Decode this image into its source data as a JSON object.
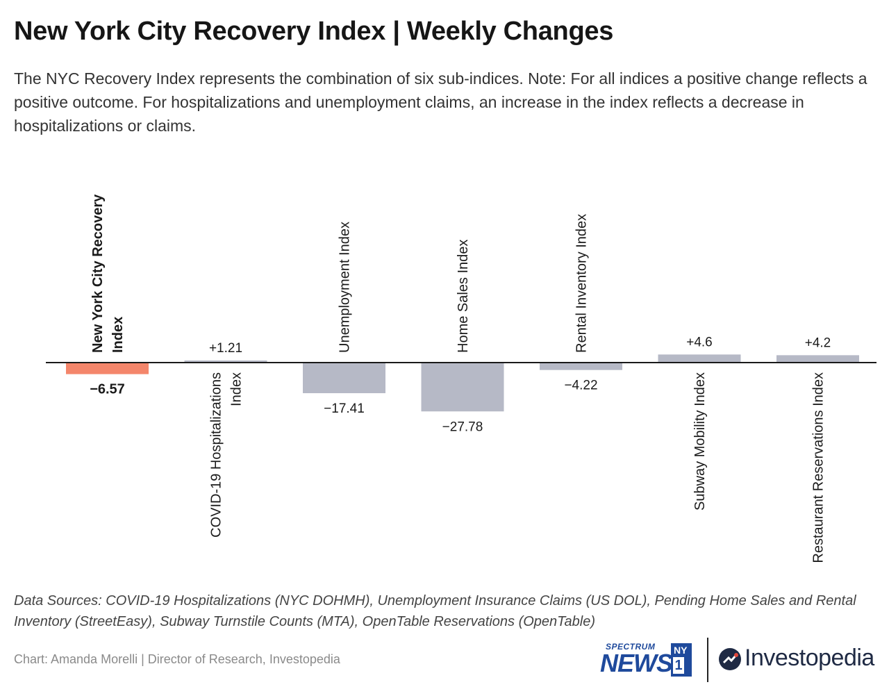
{
  "title": "New York City Recovery Index | Weekly Changes",
  "subtitle": "The NYC Recovery Index represents the combination of six sub-indices. Note: For all indices a positive change reflects a positive outcome. For hospitalizations and unemployment claims, an increase in the index reflects a decrease in hospitalizations or claims.",
  "sources": "Data Sources: COVID-19 Hospitalizations (NYC DOHMH), Unemployment Insurance Claims (US DOL), Pending Home Sales and Rental Inventory (StreetEasy), Subway Turnstile Counts (MTA), OpenTable Reservations (OpenTable)",
  "credit": "Chart: Amanda Morelli | Director of Research, Investopedia",
  "logos": {
    "spectrum_small": "SPECTRUM",
    "spectrum_news": "NEWS",
    "ny": "NY",
    "one": "1",
    "investopedia": "Investopedia"
  },
  "colors": {
    "highlight_bar": "#f4866b",
    "bar": "#b6b9c6",
    "baseline": "#1a1a1a",
    "spectrum_blue": "#1f4a9c",
    "investopedia_navy": "#1f2a44"
  },
  "chart_data": {
    "type": "bar",
    "categories": [
      "New York City Recovery Index",
      "COVID-19 Hospitalizations Index",
      "Unemployment Index",
      "Home Sales Index",
      "Rental Inventory Index",
      "Subway Mobility Index",
      "Restaurant Reservations Index"
    ],
    "category_label_lines": [
      [
        "New York City Recovery",
        "Index"
      ],
      [
        "COVID-19 Hospitalizations",
        "Index"
      ],
      [
        "Unemployment Index"
      ],
      [
        "Home Sales Index"
      ],
      [
        "Rental Inventory Index"
      ],
      [
        "Subway Mobility Index"
      ],
      [
        "Restaurant Reservations Index"
      ]
    ],
    "values": [
      -6.57,
      1.21,
      -17.41,
      -27.78,
      -4.22,
      4.6,
      4.2
    ],
    "value_labels": [
      "−6.57",
      "+1.21",
      "−17.41",
      "−27.78",
      "−4.22",
      "+4.6",
      "+4.2"
    ],
    "highlight_index": 0,
    "xlabel": "",
    "ylabel": "",
    "grid": false,
    "legend": false
  }
}
